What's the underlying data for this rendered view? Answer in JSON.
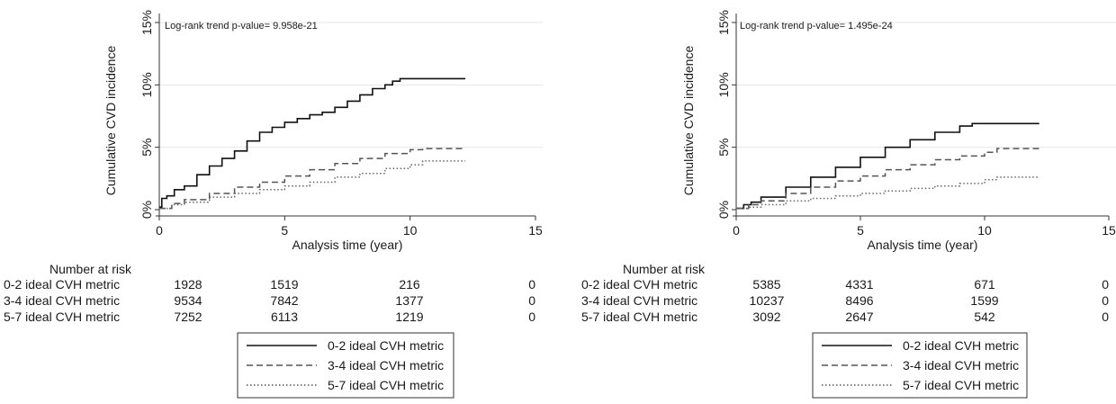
{
  "chart_data": [
    {
      "type": "line",
      "annotation": "Log-rank trend p-value= 9.958e-21",
      "xlabel": "Analysis time (year)",
      "ylabel": "Cumulative CVD incidence",
      "xlim": [
        0,
        15
      ],
      "ylim": [
        0,
        0.15
      ],
      "x_ticks": [
        "0",
        "5",
        "10",
        "15"
      ],
      "y_ticks": [
        "0%",
        "5%",
        "10%",
        "15%"
      ],
      "grid": "horizontal",
      "series": [
        {
          "name": "0-2 ideal CVH metric",
          "style": "solid",
          "x": [
            0,
            0.1,
            0.3,
            0.6,
            1.0,
            1.5,
            2.0,
            2.5,
            3.0,
            3.5,
            4.0,
            4.5,
            5.0,
            5.5,
            6.0,
            6.5,
            7.0,
            7.5,
            8.0,
            8.5,
            9.0,
            9.3,
            9.6,
            12.2
          ],
          "y": [
            0.002,
            0.009,
            0.011,
            0.016,
            0.019,
            0.028,
            0.035,
            0.041,
            0.047,
            0.055,
            0.062,
            0.066,
            0.07,
            0.073,
            0.076,
            0.078,
            0.082,
            0.087,
            0.092,
            0.097,
            0.1,
            0.103,
            0.105,
            0.105
          ]
        },
        {
          "name": "3-4 ideal CVH metric",
          "style": "dashed",
          "x": [
            0,
            0.5,
            1.0,
            2.0,
            3.0,
            4.0,
            5.0,
            6.0,
            7.0,
            8.0,
            9.0,
            10.0,
            10.5,
            12.2
          ],
          "y": [
            0.001,
            0.005,
            0.008,
            0.013,
            0.018,
            0.022,
            0.027,
            0.032,
            0.037,
            0.041,
            0.045,
            0.048,
            0.049,
            0.049
          ]
        },
        {
          "name": "5-7 ideal CVH metric",
          "style": "dotted",
          "x": [
            0,
            0.5,
            1.0,
            2.0,
            3.0,
            4.0,
            5.0,
            6.0,
            7.0,
            8.0,
            9.0,
            10.0,
            10.5,
            12.2
          ],
          "y": [
            0.001,
            0.004,
            0.006,
            0.01,
            0.013,
            0.016,
            0.019,
            0.022,
            0.026,
            0.029,
            0.033,
            0.036,
            0.039,
            0.039
          ]
        }
      ],
      "risk_table": {
        "title": "Number at risk",
        "rows": [
          {
            "label": "0-2 ideal CVH metric",
            "values": [
              "1928",
              "1519",
              "216",
              "0"
            ]
          },
          {
            "label": "3-4 ideal CVH metric",
            "values": [
              "9534",
              "7842",
              "1377",
              "0"
            ]
          },
          {
            "label": "5-7 ideal CVH metric",
            "values": [
              "7252",
              "6113",
              "1219",
              "0"
            ]
          }
        ]
      },
      "legend": {
        "placement": "bottom",
        "items": [
          "0-2 ideal CVH metric",
          "3-4 ideal CVH metric",
          "5-7 ideal CVH metric"
        ]
      }
    },
    {
      "type": "line",
      "annotation": "Log-rank trend p-value= 1.495e-24",
      "xlabel": "Analysis time (year)",
      "ylabel": "Cumulative CVD incidence",
      "xlim": [
        0,
        15
      ],
      "ylim": [
        0,
        0.15
      ],
      "x_ticks": [
        "0",
        "5",
        "10",
        "15"
      ],
      "y_ticks": [
        "0%",
        "5%",
        "10%",
        "15%"
      ],
      "grid": "horizontal",
      "series": [
        {
          "name": "0-2 ideal CVH metric",
          "style": "solid",
          "x": [
            0,
            0.3,
            0.6,
            1.0,
            2.0,
            3.0,
            4.0,
            5.0,
            6.0,
            7.0,
            8.0,
            9.0,
            9.5,
            12.2
          ],
          "y": [
            0.001,
            0.004,
            0.006,
            0.01,
            0.018,
            0.026,
            0.034,
            0.042,
            0.05,
            0.056,
            0.062,
            0.067,
            0.069,
            0.069
          ]
        },
        {
          "name": "3-4 ideal CVH metric",
          "style": "dashed",
          "x": [
            0,
            0.5,
            1.0,
            2.0,
            3.0,
            4.0,
            5.0,
            6.0,
            7.0,
            8.0,
            9.0,
            10.0,
            10.5,
            12.2
          ],
          "y": [
            0.001,
            0.004,
            0.007,
            0.013,
            0.018,
            0.023,
            0.027,
            0.032,
            0.036,
            0.04,
            0.043,
            0.046,
            0.049,
            0.049
          ]
        },
        {
          "name": "5-7 ideal CVH metric",
          "style": "dotted",
          "x": [
            0,
            0.5,
            1.0,
            2.0,
            3.0,
            4.0,
            5.0,
            6.0,
            7.0,
            8.0,
            9.0,
            10.0,
            10.5,
            12.2
          ],
          "y": [
            0.001,
            0.002,
            0.004,
            0.007,
            0.009,
            0.011,
            0.013,
            0.015,
            0.017,
            0.019,
            0.021,
            0.024,
            0.026,
            0.026
          ]
        }
      ],
      "risk_table": {
        "title": "Number at risk",
        "rows": [
          {
            "label": "0-2 ideal CVH metric",
            "values": [
              "5385",
              "4331",
              "671",
              "0"
            ]
          },
          {
            "label": "3-4 ideal CVH metric",
            "values": [
              "10237",
              "8496",
              "1599",
              "0"
            ]
          },
          {
            "label": "5-7 ideal CVH metric",
            "values": [
              "3092",
              "2647",
              "542",
              "0"
            ]
          }
        ]
      },
      "legend": {
        "placement": "bottom",
        "items": [
          "0-2 ideal CVH metric",
          "3-4 ideal CVH metric",
          "5-7 ideal CVH metric"
        ]
      }
    }
  ]
}
